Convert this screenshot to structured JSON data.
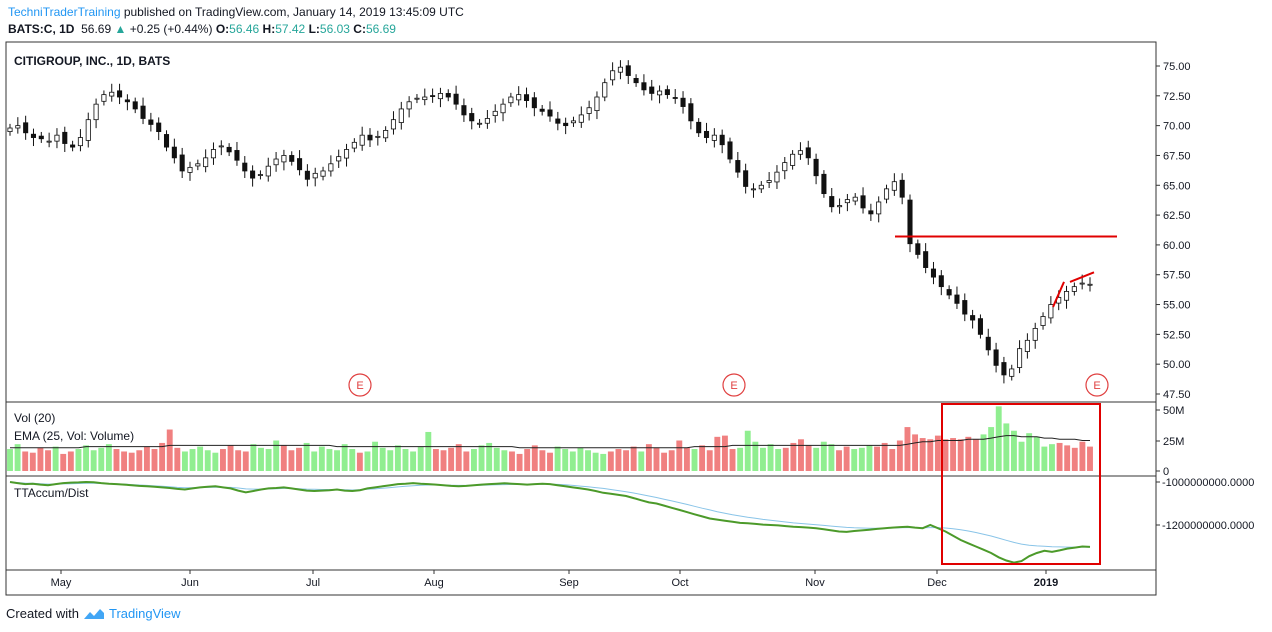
{
  "header": {
    "brand": "TechniTraderTraining",
    "published": " published on TradingView.com, January 14, 2019 13:45:09 UTC",
    "symbol": "BATS:C, 1D",
    "last": "56.69",
    "up_arrow": "▲",
    "change": "+0.25 (+0.44%)",
    "o_label": "O:",
    "o_value": "56.46",
    "h_label": "H:",
    "h_value": "57.42",
    "l_label": "L:",
    "l_value": "56.03",
    "c_label": "C:",
    "c_value": "56.69"
  },
  "footer": {
    "created_with": "Created with",
    "logo": "TradingView"
  },
  "colors": {
    "up_volume": "#90ee90",
    "down_volume": "#f08080",
    "accum_line": "#4c9a2a",
    "accum_avg": "#89c4e8",
    "annotation": "#e00000",
    "earnings": "#e04040"
  },
  "chart_data": [
    {
      "type": "candlestick",
      "title": "CITIGROUP, INC., 1D, BATS",
      "y_ticks": [
        "75.00",
        "72.50",
        "70.00",
        "67.50",
        "65.00",
        "62.50",
        "60.00",
        "57.50",
        "55.00",
        "52.50",
        "50.00",
        "47.50"
      ],
      "ylim": [
        46.5,
        76.7
      ],
      "x_ticks": [
        "May",
        "Jun",
        "Jul",
        "Aug",
        "Sep",
        "Oct",
        "Nov",
        "Dec",
        "2019"
      ],
      "earnings_markers": [
        "E",
        "E",
        "E"
      ],
      "close_series_approx": [
        69.8,
        70.0,
        69.4,
        69.0,
        68.9,
        68.7,
        69.2,
        68.5,
        68.2,
        69.0,
        70.5,
        71.8,
        72.6,
        72.8,
        72.4,
        72.0,
        71.4,
        70.6,
        70.1,
        69.5,
        68.2,
        67.3,
        66.2,
        66.5,
        66.8,
        67.3,
        68.0,
        68.3,
        67.8,
        67.1,
        66.2,
        65.6,
        65.9,
        66.6,
        67.2,
        67.5,
        67.0,
        66.3,
        65.5,
        66.0,
        66.2,
        66.8,
        67.4,
        68.0,
        68.6,
        69.2,
        68.8,
        69.1,
        69.6,
        70.5,
        71.4,
        72.0,
        72.3,
        72.4,
        72.5,
        72.7,
        72.4,
        71.8,
        70.9,
        70.4,
        70.2,
        70.6,
        71.2,
        71.8,
        72.4,
        72.6,
        72.1,
        71.5,
        71.2,
        70.8,
        70.2,
        70.0,
        70.4,
        70.9,
        71.5,
        72.4,
        73.6,
        74.6,
        74.9,
        74.2,
        73.6,
        73.0,
        72.7,
        72.9,
        72.6,
        72.3,
        71.6,
        70.4,
        69.4,
        69.0,
        69.2,
        68.4,
        67.2,
        66.1,
        64.9,
        64.7,
        65.0,
        65.4,
        66.1,
        66.9,
        67.6,
        67.9,
        67.3,
        65.8,
        64.3,
        63.2,
        63.3,
        63.8,
        64.0,
        63.1,
        62.6,
        63.6,
        64.7,
        65.3,
        64.0,
        60.1,
        59.2,
        58.1,
        57.3,
        56.5,
        55.8,
        55.1,
        54.2,
        53.7,
        52.5,
        51.2,
        49.9,
        49.1,
        49.6,
        51.3,
        52.0,
        53.0,
        54.0,
        55.0,
        55.6,
        56.1,
        56.5,
        56.8,
        56.7
      ],
      "annotations": {
        "resistance_line": 60.7,
        "trend_line_1": [
          54.8,
          56.9
        ],
        "trend_line_2": [
          56.9,
          57.7
        ],
        "highlight_box": "Dec–2019"
      }
    },
    {
      "type": "bar",
      "title": "Vol (20)",
      "subtitle": "EMA (25, Vol: Volume)",
      "y_ticks": [
        "50M",
        "25M",
        "0"
      ],
      "ylim": [
        0,
        52
      ],
      "values_M_approx": [
        18,
        22,
        16,
        15,
        19,
        17,
        20,
        14,
        16,
        18,
        21,
        17,
        19,
        22,
        18,
        16,
        15,
        17,
        20,
        18,
        23,
        34,
        19,
        16,
        18,
        20,
        17,
        15,
        18,
        21,
        17,
        16,
        22,
        19,
        18,
        25,
        21,
        17,
        19,
        23,
        16,
        20,
        18,
        17,
        22,
        18,
        15,
        16,
        24,
        19,
        17,
        21,
        18,
        16,
        20,
        32,
        18,
        17,
        19,
        22,
        16,
        18,
        21,
        23,
        19,
        17,
        16,
        14,
        18,
        21,
        17,
        15,
        20,
        18,
        16,
        19,
        17,
        15,
        14,
        16,
        18,
        17,
        20,
        16,
        22,
        19,
        15,
        17,
        25,
        19,
        18,
        21,
        17,
        28,
        29,
        18,
        19,
        33,
        24,
        19,
        22,
        18,
        19,
        23,
        26,
        21,
        19,
        24,
        22,
        17,
        20,
        18,
        19,
        21,
        20,
        23,
        18,
        25,
        36,
        30,
        27,
        26,
        29,
        26,
        27,
        26,
        28,
        26,
        30,
        36,
        53,
        39,
        33,
        24,
        31,
        28,
        20,
        22,
        23,
        21,
        19,
        24,
        20
      ],
      "ema_M_approx": [
        19,
        19,
        19,
        19,
        19,
        19,
        19,
        19,
        19,
        19,
        20,
        20,
        20,
        20,
        20,
        20,
        20,
        20,
        20,
        20,
        20,
        21,
        21,
        21,
        21,
        21,
        21,
        21,
        21,
        21,
        21,
        21,
        21,
        21,
        21,
        21,
        21,
        21,
        21,
        21,
        21,
        21,
        21,
        20,
        20,
        20,
        20,
        20,
        20,
        20,
        20,
        20,
        20,
        20,
        20,
        20,
        20,
        20,
        20,
        20,
        20,
        20,
        20,
        20,
        20,
        20,
        20,
        19,
        19,
        19,
        19,
        19,
        19,
        19,
        19,
        19,
        19,
        19,
        19,
        19,
        19,
        19,
        19,
        19,
        19,
        19,
        19,
        19,
        19,
        19,
        20,
        20,
        20,
        20,
        20,
        21,
        21,
        21,
        21,
        21,
        21,
        21,
        21,
        21,
        21,
        21,
        21,
        21,
        21,
        21,
        21,
        21,
        21,
        21,
        21,
        21,
        21,
        21,
        22,
        23,
        24,
        24,
        25,
        25,
        25,
        25,
        26,
        26,
        26,
        27,
        28,
        29,
        29,
        28,
        28,
        28,
        27,
        27,
        26,
        26,
        26,
        25,
        25
      ]
    },
    {
      "type": "line",
      "title": "TTAccum/Dist",
      "y_ticks": [
        "-1000000000.0000",
        "-1200000000.0000"
      ],
      "ylim": [
        -1385000000,
        -935000000
      ],
      "series": [
        {
          "name": "",
          "values_M_approx": [
            -1000,
            -1005,
            -1010,
            -1008,
            -1012,
            -1015,
            -1010,
            -1005,
            -1003,
            -1002,
            -1000,
            -1001,
            -1005,
            -1008,
            -1010,
            -1012,
            -1015,
            -1018,
            -1020,
            -1022,
            -1025,
            -1028,
            -1032,
            -1035,
            -1030,
            -1025,
            -1022,
            -1020,
            -1025,
            -1030,
            -1040,
            -1048,
            -1042,
            -1035,
            -1030,
            -1028,
            -1025,
            -1030,
            -1035,
            -1040,
            -1042,
            -1040,
            -1038,
            -1035,
            -1040,
            -1042,
            -1038,
            -1030,
            -1025,
            -1020,
            -1015,
            -1010,
            -1008,
            -1005,
            -1008,
            -1010,
            -1012,
            -1015,
            -1018,
            -1020,
            -1018,
            -1015,
            -1012,
            -1010,
            -1008,
            -1006,
            -1008,
            -1010,
            -1012,
            -1010,
            -1008,
            -1010,
            -1015,
            -1020,
            -1025,
            -1030,
            -1035,
            -1042,
            -1050,
            -1055,
            -1060,
            -1065,
            -1075,
            -1085,
            -1095,
            -1100,
            -1110,
            -1120,
            -1130,
            -1140,
            -1150,
            -1160,
            -1170,
            -1175,
            -1180,
            -1185,
            -1190,
            -1192,
            -1195,
            -1198,
            -1200,
            -1202,
            -1205,
            -1208,
            -1210,
            -1212,
            -1215,
            -1220,
            -1225,
            -1230,
            -1232,
            -1228,
            -1225,
            -1222,
            -1218,
            -1215,
            -1212,
            -1210,
            -1208,
            -1212,
            -1215,
            -1200,
            -1215,
            -1230,
            -1250,
            -1270,
            -1285,
            -1300,
            -1315,
            -1330,
            -1350,
            -1365,
            -1375,
            -1368,
            -1345,
            -1330,
            -1320,
            -1325,
            -1318,
            -1310,
            -1305,
            -1300,
            -1302
          ]
        },
        {
          "name": "",
          "values_M_approx": [
            -1000,
            -1003,
            -1005,
            -1006,
            -1008,
            -1010,
            -1010,
            -1009,
            -1008,
            -1007,
            -1006,
            -1006,
            -1007,
            -1008,
            -1009,
            -1010,
            -1012,
            -1014,
            -1016,
            -1018,
            -1020,
            -1022,
            -1025,
            -1027,
            -1027,
            -1026,
            -1025,
            -1024,
            -1024,
            -1025,
            -1028,
            -1032,
            -1033,
            -1033,
            -1032,
            -1031,
            -1030,
            -1030,
            -1031,
            -1033,
            -1034,
            -1035,
            -1035,
            -1035,
            -1036,
            -1037,
            -1036,
            -1034,
            -1032,
            -1029,
            -1026,
            -1023,
            -1020,
            -1017,
            -1015,
            -1014,
            -1014,
            -1014,
            -1015,
            -1016,
            -1016,
            -1016,
            -1015,
            -1014,
            -1013,
            -1012,
            -1011,
            -1011,
            -1011,
            -1011,
            -1010,
            -1010,
            -1011,
            -1013,
            -1016,
            -1019,
            -1022,
            -1026,
            -1030,
            -1035,
            -1040,
            -1045,
            -1051,
            -1058,
            -1065,
            -1072,
            -1080,
            -1088,
            -1096,
            -1104,
            -1113,
            -1122,
            -1130,
            -1138,
            -1145,
            -1152,
            -1158,
            -1164,
            -1169,
            -1174,
            -1178,
            -1182,
            -1186,
            -1190,
            -1193,
            -1196,
            -1199,
            -1202,
            -1205,
            -1208,
            -1211,
            -1213,
            -1214,
            -1215,
            -1215,
            -1215,
            -1214,
            -1213,
            -1212,
            -1212,
            -1213,
            -1212,
            -1212,
            -1214,
            -1217,
            -1222,
            -1228,
            -1235,
            -1243,
            -1251,
            -1261,
            -1271,
            -1281,
            -1289,
            -1294,
            -1297,
            -1299,
            -1301,
            -1302,
            -1303,
            -1303,
            -1303,
            -1303
          ]
        }
      ]
    }
  ]
}
